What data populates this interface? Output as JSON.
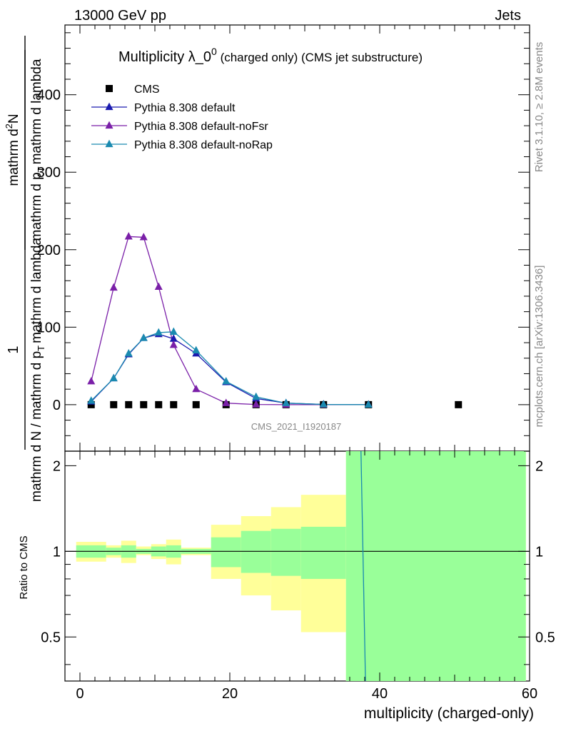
{
  "header": {
    "left": "13000 GeV pp",
    "right": "Jets"
  },
  "side": {
    "rivet": "Rivet 3.1.10, ≥ 2.8M events",
    "mcplots": "mcplots.cern.ch [arXiv:1306.3436]"
  },
  "chart_data": [
    {
      "type": "line",
      "title_main": "Multiplicity λ_0",
      "title_sup": "0",
      "title_sub": " (charged only) (CMS jet substructure)",
      "ylabel_parts": [
        "1",
        "mathrm d N / mathrm d p",
        "T",
        "mathrm d lambda",
        "mathrm d",
        "2",
        "N",
        "mathrm d p",
        "T",
        "mathrm d lambda"
      ],
      "ylabel": "1/(mathrm d N / mathrm d p_T mathrm d lambda) mathrm d^2N/(mathrm d p_T mathrm d lambda)",
      "watermark": "CMS_2021_I1920187",
      "xlim": [
        -2,
        60
      ],
      "ylim": [
        -60,
        490
      ],
      "yticks": [
        0,
        100,
        200,
        300,
        400
      ],
      "legend_position": "top-left",
      "series": [
        {
          "name": "CMS",
          "color": "#000000",
          "marker": "square",
          "x": [
            1.5,
            4.5,
            6.5,
            8.5,
            10.5,
            12.5,
            15.5,
            19.5,
            23.5,
            27.5,
            32.5,
            38.5,
            50.5
          ],
          "y": [
            0,
            0,
            0,
            0,
            0,
            0,
            0,
            0,
            0,
            0,
            0,
            0,
            0
          ]
        },
        {
          "name": "Pythia 8.308 default",
          "color": "#1a1aaf",
          "marker": "triangle",
          "x": [
            1.5,
            4.5,
            6.5,
            8.5,
            10.5,
            12.5,
            15.5,
            19.5,
            23.5,
            27.5,
            32.5,
            38.5
          ],
          "y": [
            4,
            34,
            65,
            86,
            91,
            85,
            66,
            29,
            8,
            2,
            0.3,
            0
          ]
        },
        {
          "name": "Pythia 8.308 default-noFsr",
          "color": "#7a1fa8",
          "marker": "triangle",
          "x": [
            1.5,
            4.5,
            6.5,
            8.5,
            10.5,
            12.5,
            15.5,
            19.5,
            23.5,
            27.5,
            32.5,
            38.5
          ],
          "y": [
            30,
            151,
            217,
            216,
            152,
            77,
            20,
            2,
            0.2,
            0,
            0,
            0
          ]
        },
        {
          "name": "Pythia 8.308 default-noRap",
          "color": "#1a8ab0",
          "marker": "triangle",
          "x": [
            1.5,
            4.5,
            6.5,
            8.5,
            10.5,
            12.5,
            15.5,
            19.5,
            23.5,
            27.5,
            32.5,
            38.5
          ],
          "y": [
            5,
            34,
            66,
            86,
            93,
            94,
            70,
            30,
            10,
            2,
            0.3,
            0
          ]
        }
      ]
    },
    {
      "type": "area",
      "ylabel": "Ratio to CMS",
      "xlabel": "multiplicity (charged-only)",
      "xlim": [
        -2,
        60
      ],
      "ylim": [
        0.35,
        2.25
      ],
      "yticks": [
        0.5,
        1,
        2
      ],
      "xticks": [
        0,
        20,
        40,
        60
      ],
      "bins": [
        {
          "lo": -0.5,
          "hi": 3.5,
          "inner": [
            0.95,
            1.05
          ],
          "outer": [
            0.92,
            1.08
          ]
        },
        {
          "lo": 3.5,
          "hi": 5.5,
          "inner": [
            0.97,
            1.03
          ],
          "outer": [
            0.95,
            1.05
          ]
        },
        {
          "lo": 5.5,
          "hi": 7.5,
          "inner": [
            0.95,
            1.05
          ],
          "outer": [
            0.91,
            1.09
          ]
        },
        {
          "lo": 7.5,
          "hi": 9.5,
          "inner": [
            0.98,
            1.02
          ],
          "outer": [
            0.97,
            1.04
          ]
        },
        {
          "lo": 9.5,
          "hi": 11.5,
          "inner": [
            0.96,
            1.04
          ],
          "outer": [
            0.94,
            1.06
          ]
        },
        {
          "lo": 11.5,
          "hi": 13.5,
          "inner": [
            0.95,
            1.05
          ],
          "outer": [
            0.9,
            1.1
          ]
        },
        {
          "lo": 13.5,
          "hi": 17.5,
          "inner": [
            0.98,
            1.02
          ],
          "outer": [
            0.97,
            1.03
          ]
        },
        {
          "lo": 17.5,
          "hi": 21.5,
          "inner": [
            0.88,
            1.12
          ],
          "outer": [
            0.8,
            1.24
          ]
        },
        {
          "lo": 21.5,
          "hi": 25.5,
          "inner": [
            0.84,
            1.18
          ],
          "outer": [
            0.7,
            1.33
          ]
        },
        {
          "lo": 25.5,
          "hi": 29.5,
          "inner": [
            0.82,
            1.2
          ],
          "outer": [
            0.62,
            1.43
          ]
        },
        {
          "lo": 29.5,
          "hi": 35.5,
          "inner": [
            0.8,
            1.22
          ],
          "outer": [
            0.52,
            1.58
          ]
        },
        {
          "lo": 35.5,
          "hi": 59.5,
          "inner": [
            0.35,
            2.25
          ],
          "outer": [
            0.35,
            2.25
          ]
        }
      ],
      "series": [
        {
          "name": "Pythia 8.308 default-noRap",
          "color": "#1a8ab0",
          "x": [
            37.5,
            38.1
          ],
          "y": [
            2.25,
            0.35
          ]
        }
      ],
      "reference_line": 1
    }
  ]
}
